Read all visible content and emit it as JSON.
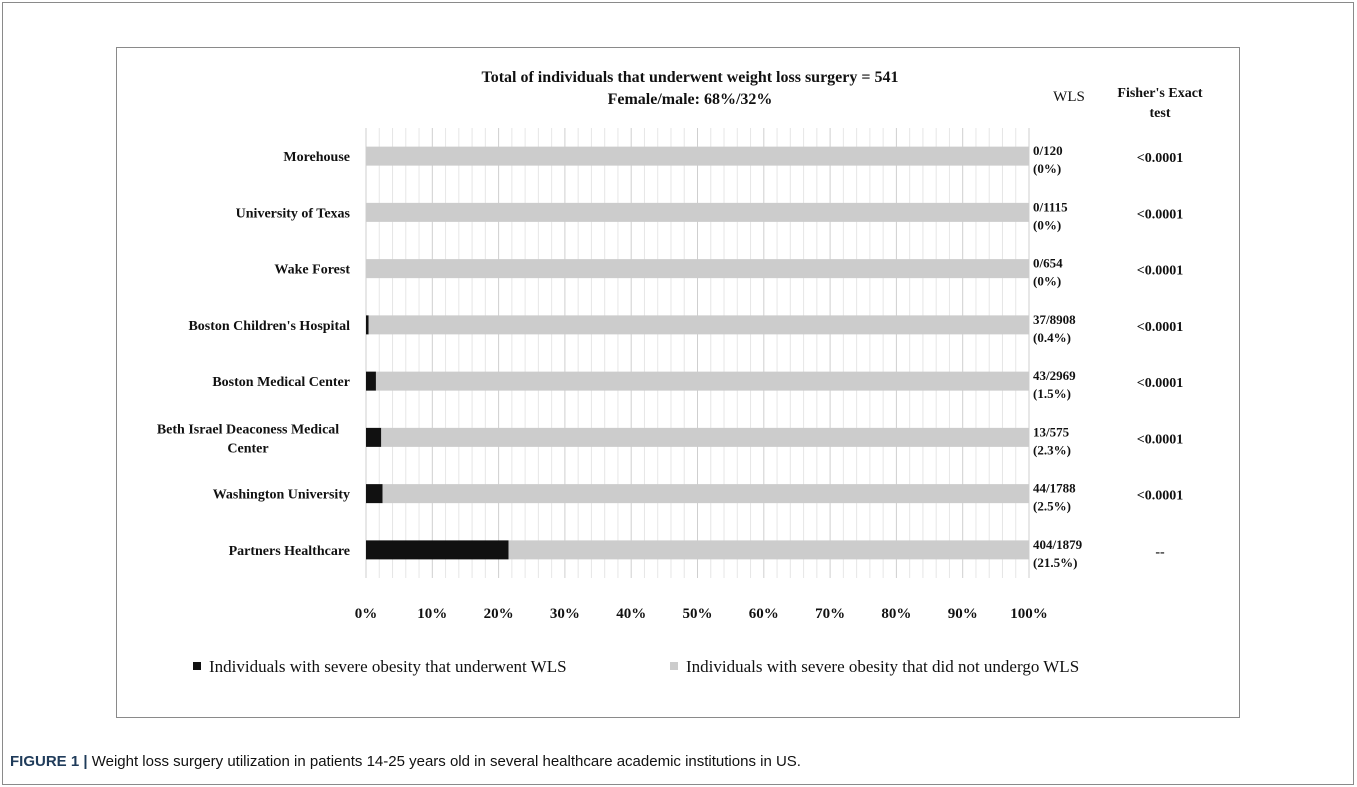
{
  "chart_data": {
    "type": "bar",
    "stacked": true,
    "orientation": "horizontal",
    "title_lines": [
      "Total of individuals that underwent weight loss surgery = 541",
      "Female/male: 68%/32%"
    ],
    "categories": [
      "Morehouse",
      "University of Texas",
      "Wake Forest",
      "Boston Children's Hospital",
      "Boston Medical Center",
      "Beth Israel Deaconess Medical Center",
      "Washington University",
      "Partners Healthcare"
    ],
    "category_label_lines": [
      [
        "Morehouse"
      ],
      [
        "University of Texas"
      ],
      [
        "Wake Forest"
      ],
      [
        "Boston Children's Hospital"
      ],
      [
        "Boston Medical Center"
      ],
      [
        "Beth Israel Deaconess Medical",
        "Center"
      ],
      [
        "Washington University"
      ],
      [
        "Partners Healthcare"
      ]
    ],
    "series": [
      {
        "name": "Individuals with severe obesity that underwent WLS",
        "color": "#111111",
        "values": [
          0,
          0,
          0,
          0.4,
          1.5,
          2.3,
          2.5,
          21.5
        ]
      },
      {
        "name": "Individuals with severe obesity that did not undergo WLS",
        "color": "#cccccc",
        "values": [
          100,
          100,
          100,
          99.6,
          98.5,
          97.7,
          97.5,
          78.5
        ]
      }
    ],
    "xlim": [
      0,
      100
    ],
    "x_ticks": [
      "0%",
      "10%",
      "20%",
      "30%",
      "40%",
      "50%",
      "60%",
      "70%",
      "80%",
      "90%",
      "100%"
    ],
    "grid": true,
    "legend_position": "bottom",
    "table_columns": [
      "WLS",
      "Fisher's Exact test"
    ],
    "wls_counts": [
      "0/120",
      "0/1115",
      "0/654",
      "37/8908",
      "43/2969",
      "13/575",
      "44/1788",
      "404/1879"
    ],
    "wls_percents": [
      "(0%)",
      "(0%)",
      "(0%)",
      "(0.4%)",
      "(1.5%)",
      "(2.3%)",
      "(2.5%)",
      "(21.5%)"
    ],
    "fisher_values": [
      "<0.0001",
      "<0.0001",
      "<0.0001",
      "<0.0001",
      "<0.0001",
      "<0.0001",
      "<0.0001",
      "--"
    ]
  },
  "caption": {
    "label": "FIGURE 1 |",
    "text": " Weight loss surgery utilization in patients 14-25 years old in several healthcare academic institutions in US."
  }
}
